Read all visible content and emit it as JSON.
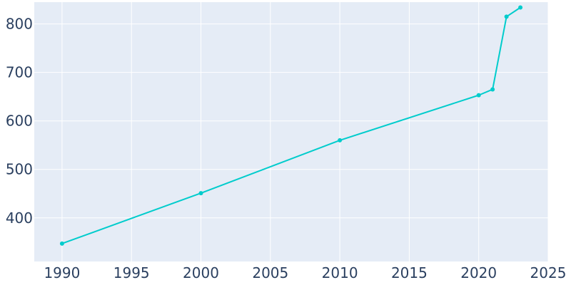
{
  "chart_data": {
    "type": "line",
    "title": "",
    "xlabel": "",
    "ylabel": "",
    "xlim": [
      1988,
      2025
    ],
    "ylim": [
      310,
      845
    ],
    "x_ticks": [
      1990,
      1995,
      2000,
      2005,
      2010,
      2015,
      2020,
      2025
    ],
    "y_ticks": [
      400,
      500,
      600,
      700,
      800
    ],
    "grid": true,
    "legend": "none",
    "series": [
      {
        "color": "#00cccc",
        "points": [
          {
            "x": 1990,
            "y": 347
          },
          {
            "x": 2000,
            "y": 451
          },
          {
            "x": 2010,
            "y": 560
          },
          {
            "x": 2020,
            "y": 653
          },
          {
            "x": 2021,
            "y": 665
          },
          {
            "x": 2022,
            "y": 815
          },
          {
            "x": 2023,
            "y": 834
          }
        ]
      }
    ],
    "colors": {
      "plot_background": "#e5ecf6",
      "grid": "#ffffff",
      "tick_text": "#2a3f5f"
    }
  }
}
